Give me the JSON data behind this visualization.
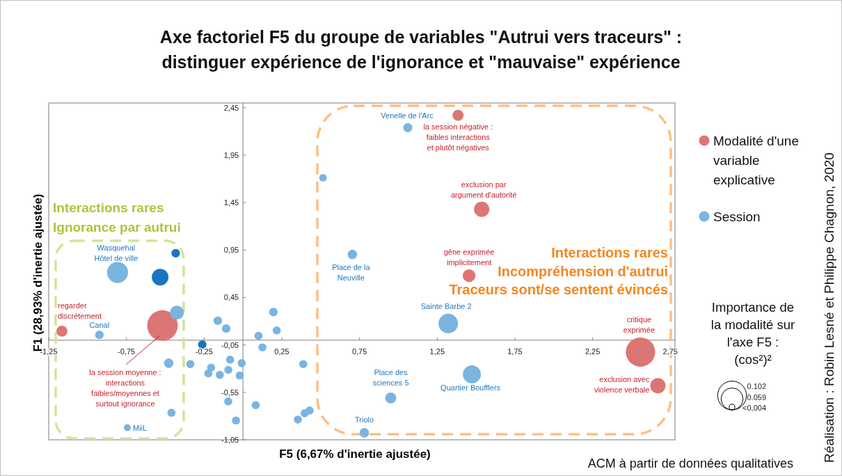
{
  "chart_data": {
    "type": "bubble",
    "title": "Axe factoriel F5 du groupe de variables \"Autrui vers traceurs\" :\ndistinguer expérience de l'ignorance et \"mauvaise\" expérience",
    "xlabel": "F5 (6,67% d'inertie ajustée)",
    "ylabel": "F1 (28,93% d'inertie ajustée)",
    "xlim": [
      -1.25,
      2.78
    ],
    "ylim": [
      -1.05,
      2.5
    ],
    "xticks": [
      {
        "value": -1.25,
        "label": "-1,25"
      },
      {
        "value": -0.75,
        "label": "-0,75"
      },
      {
        "value": -0.25,
        "label": "-0,25"
      },
      {
        "value": 0.25,
        "label": "0,25"
      },
      {
        "value": 0.75,
        "label": "0,75"
      },
      {
        "value": 1.25,
        "label": "1,25"
      },
      {
        "value": 1.75,
        "label": "1,75"
      },
      {
        "value": 2.25,
        "label": "2,25"
      },
      {
        "value": 2.75,
        "label": "2,75"
      }
    ],
    "yticks": [
      {
        "value": -1.05,
        "label": "-1,05"
      },
      {
        "value": -0.55,
        "label": "-0,55"
      },
      {
        "value": -0.05,
        "label": "-0,05"
      },
      {
        "value": 0.45,
        "label": "0,45"
      },
      {
        "value": 0.95,
        "label": "0,95"
      },
      {
        "value": 1.45,
        "label": "1,45"
      },
      {
        "value": 1.95,
        "label": "1,95"
      },
      {
        "value": 2.45,
        "label": "2,45"
      }
    ],
    "legend": "right",
    "size_legend": [
      0.102,
      0.059,
      {
        "value": 0.004,
        "label": "<0,004"
      }
    ],
    "series": [
      {
        "name": "Modalité d'une variable explicative",
        "color": "#dc7674",
        "x": [
          -1.165,
          -0.518,
          1.384,
          1.536,
          1.455,
          2.558,
          2.67
        ],
        "values": [
          0.095,
          0.154,
          2.37,
          1.38,
          0.68,
          -0.125,
          -0.48
        ],
        "sizes": [
          0.015,
          0.115,
          0.015,
          0.029,
          0.02,
          0.105,
          0.029
        ]
      },
      {
        "name": "Session",
        "color": "#7ab4e0",
        "colors": [
          "#7ab4e0",
          "#1a74bf",
          "#1a74bf",
          "#7ab4e0",
          "#7ab4e0",
          "#1a74bf",
          "#7ab4e0",
          "#7ab4e0",
          "#7ab4e0",
          "#7ab4e0",
          "#7ab4e0",
          "#7ab4e0",
          "#7ab4e0",
          "#7ab4e0",
          "#7ab4e0",
          "#7ab4e0",
          "#7ab4e0",
          "#7ab4e0",
          "#7ab4e0",
          "#7ab4e0",
          "#7ab4e0",
          "#7ab4e0",
          "#7ab4e0",
          "#7ab4e0",
          "#7ab4e0",
          "#7ab4e0",
          "#7ab4e0",
          "#7ab4e0",
          "#7ab4e0",
          "#7ab4e0",
          "#7ab4e0",
          "#7ab4e0",
          "#7ab4e0",
          "#7ab4e0",
          "#7ab4e0",
          "#7ab4e0",
          "#7ab4e0"
        ],
        "x": [
          -0.807,
          -0.533,
          -0.433,
          -0.425,
          -0.924,
          -0.262,
          -0.162,
          -0.108,
          0.196,
          0.217,
          0.1,
          0.125,
          -0.478,
          -0.339,
          -0.205,
          -0.223,
          -0.149,
          -0.083,
          -0.094,
          -0.008,
          -0.021,
          0.388,
          -0.095,
          0.082,
          -0.045,
          0.353,
          0.397,
          0.429,
          -0.46,
          -0.744,
          0.515,
          1.061,
          0.704,
          1.321,
          1.473,
          0.951,
          0.781
        ],
        "values": [
          0.714,
          0.665,
          0.917,
          0.291,
          0.056,
          -0.046,
          0.205,
          0.122,
          0.296,
          0.103,
          0.046,
          -0.076,
          -0.242,
          -0.252,
          -0.289,
          -0.35,
          -0.365,
          -0.205,
          -0.313,
          -0.242,
          -0.372,
          -0.252,
          -0.646,
          -0.685,
          -0.846,
          -0.837,
          -0.77,
          -0.741,
          -0.765,
          -0.922,
          1.712,
          2.24,
          0.904,
          0.176,
          -0.36,
          -0.609,
          -0.976
        ],
        "sizes": [
          0.054,
          0.034,
          0.009,
          0.024,
          0.009,
          0.009,
          0.009,
          0.009,
          0.009,
          0.008,
          0.008,
          0.008,
          0.011,
          0.008,
          0.008,
          0.008,
          0.008,
          0.008,
          0.008,
          0.008,
          0.008,
          0.008,
          0.008,
          0.008,
          0.008,
          0.008,
          0.008,
          0.008,
          0.008,
          0.006,
          0.007,
          0.01,
          0.011,
          0.047,
          0.04,
          0.015,
          0.011
        ]
      }
    ],
    "annotations": [
      {
        "text": "regarder\ndiscrètement",
        "x": -1.165,
        "y": 0.095
      },
      {
        "text": "la session négative :\nfaibles interactions\net plutôt négatives",
        "x": 1.384,
        "y": 2.37
      },
      {
        "text": "exclusion par\nargument d'autorité",
        "x": 1.536,
        "y": 1.38
      },
      {
        "text": "gêne exprimée\nimplicitement",
        "x": 1.455,
        "y": 0.68
      },
      {
        "text": "critique\nexprimée",
        "x": 2.558,
        "y": -0.125
      },
      {
        "text": "exclusion avec\nviolence verbale",
        "x": 2.67,
        "y": -0.48
      },
      {
        "text": "Venelle de l'Arc",
        "x": 1.061,
        "y": 2.24
      },
      {
        "text": "Place de la\nNeuville",
        "x": 0.704,
        "y": 0.904
      },
      {
        "text": "Sainte Barbe 2",
        "x": 1.321,
        "y": 0.176
      },
      {
        "text": "Quartier Boufflers",
        "x": 1.473,
        "y": -0.36
      },
      {
        "text": "Place des\nsciences 5",
        "x": 0.951,
        "y": -0.609
      },
      {
        "text": "Triolo",
        "x": 0.781,
        "y": -0.976
      },
      {
        "text": "MiiL",
        "x": -0.744,
        "y": -0.922
      },
      {
        "text": "Canal",
        "x": -0.924,
        "y": 0.056
      },
      {
        "text": "Wasquehal\nHôtel de ville",
        "x": -0.807,
        "y": 0.714
      },
      "Interactions rares\nIgnorance par autrui",
      "Interactions rares\nIncompréhension d'autrui\nTraceurs sont/se sentent évincés",
      "Importance de\nla modalité sur\nl'axe F5 :\n(cos²)²",
      "ACM à partir de données qualitatives",
      "Réalisation : Robin Lesné et Philippe Chagnon, 2020",
      "la session moyenne :\ninteractions\nfaibles/moyennes et\nsurtout ignorance"
    ]
  }
}
